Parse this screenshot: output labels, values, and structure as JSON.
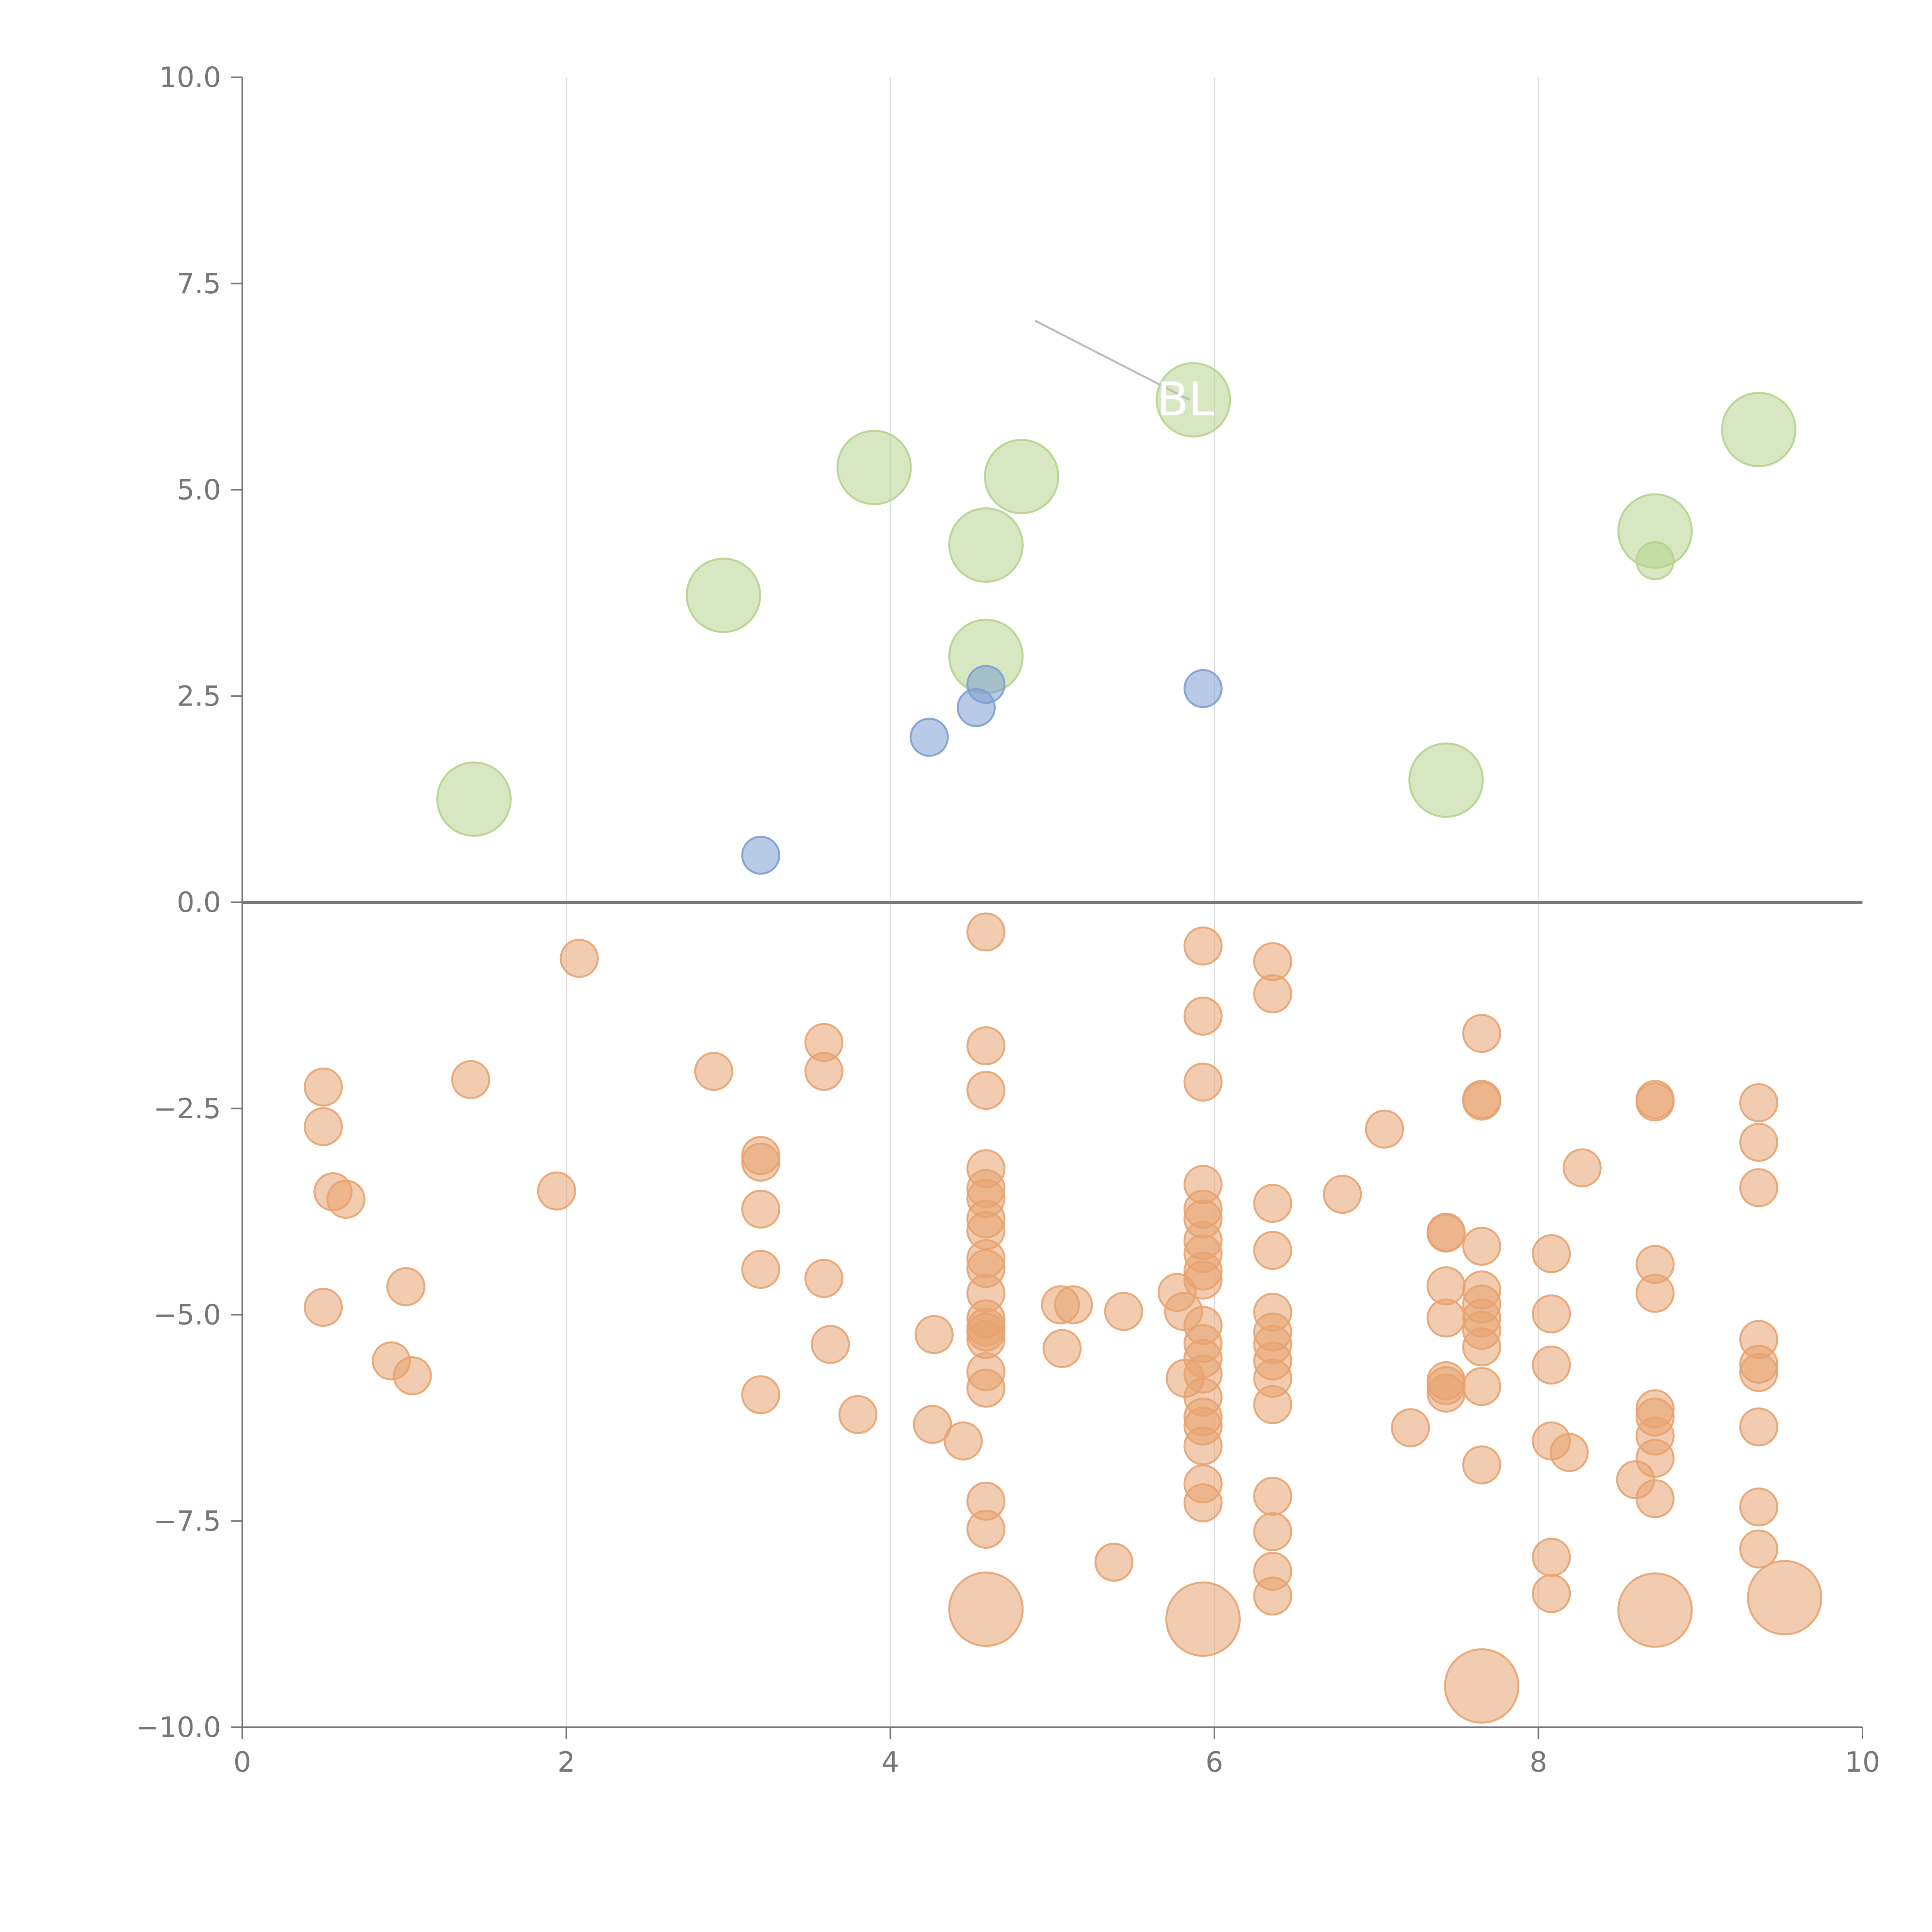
{
  "chart_data": {
    "type": "scatter",
    "title": "",
    "xlabel": "",
    "ylabel": "",
    "xlim": [
      0,
      10
    ],
    "ylim": [
      -10,
      10
    ],
    "x_ticks": [
      "0",
      "2",
      "4",
      "6",
      "8",
      "10"
    ],
    "y_ticks": [
      "−10.0",
      "−7.5",
      "−5.0",
      "−2.5",
      "0.0",
      "2.5",
      "5.0",
      "7.5",
      "10.0"
    ],
    "vertical_grid": [
      2,
      4,
      6,
      8
    ],
    "zero_line": true,
    "colors": {
      "green": "#b5d38e",
      "blue": "#7d9fd0",
      "orange": "#e8a370",
      "axis": "#777777",
      "grid": "#dddddd"
    },
    "series": [
      {
        "color": "green",
        "points": [
          [
            1.43,
            1.25,
            "large"
          ],
          [
            2.97,
            3.72,
            "large"
          ],
          [
            3.9,
            5.27,
            "large"
          ],
          [
            4.59,
            4.33,
            "large"
          ],
          [
            4.59,
            2.98,
            "large"
          ],
          [
            4.81,
            5.16,
            "large"
          ],
          [
            5.87,
            6.09,
            "large"
          ],
          [
            7.43,
            1.48,
            "large"
          ],
          [
            8.72,
            4.5,
            "large"
          ],
          [
            8.72,
            4.14,
            "small"
          ],
          [
            9.36,
            5.73,
            "large"
          ]
        ]
      },
      {
        "color": "blue",
        "points": [
          [
            3.2,
            0.57,
            "small"
          ],
          [
            4.24,
            2.0,
            "small"
          ],
          [
            4.53,
            2.36,
            "small"
          ],
          [
            4.59,
            2.64,
            "small"
          ],
          [
            5.93,
            2.59,
            "small"
          ]
        ]
      },
      {
        "color": "orange",
        "points": [
          [
            0.5,
            -2.24,
            "small"
          ],
          [
            0.5,
            -2.72,
            "small"
          ],
          [
            0.56,
            -3.51,
            "small"
          ],
          [
            0.64,
            -3.6,
            "small"
          ],
          [
            0.5,
            -4.91,
            "small"
          ],
          [
            1.01,
            -4.66,
            "small"
          ],
          [
            0.92,
            -5.56,
            "small"
          ],
          [
            1.05,
            -5.74,
            "small"
          ],
          [
            1.41,
            -2.15,
            "small"
          ],
          [
            1.94,
            -3.5,
            "small"
          ],
          [
            2.08,
            -0.68,
            "small"
          ],
          [
            2.91,
            -2.05,
            "small"
          ],
          [
            3.2,
            -3.07,
            "small"
          ],
          [
            3.2,
            -3.15,
            "small"
          ],
          [
            3.2,
            -3.72,
            "small"
          ],
          [
            3.2,
            -4.45,
            "small"
          ],
          [
            3.2,
            -5.97,
            "small"
          ],
          [
            3.59,
            -1.7,
            "small"
          ],
          [
            3.59,
            -2.05,
            "small"
          ],
          [
            3.59,
            -4.56,
            "small"
          ],
          [
            3.63,
            -5.36,
            "small"
          ],
          [
            3.8,
            -6.21,
            "small"
          ],
          [
            4.27,
            -5.24,
            "small"
          ],
          [
            4.26,
            -6.33,
            "small"
          ],
          [
            4.45,
            -6.53,
            "small"
          ],
          [
            4.59,
            -0.36,
            "small"
          ],
          [
            4.59,
            -1.74,
            "small"
          ],
          [
            4.59,
            -2.28,
            "small"
          ],
          [
            4.59,
            -3.23,
            "small"
          ],
          [
            4.59,
            -3.47,
            "small"
          ],
          [
            4.59,
            -3.59,
            "small"
          ],
          [
            4.59,
            -3.84,
            "small"
          ],
          [
            4.59,
            -3.98,
            "small"
          ],
          [
            4.59,
            -4.32,
            "small"
          ],
          [
            4.59,
            -4.44,
            "small"
          ],
          [
            4.59,
            -4.74,
            "small"
          ],
          [
            4.59,
            -5.05,
            "small"
          ],
          [
            4.59,
            -5.15,
            "small"
          ],
          [
            4.59,
            -5.21,
            "small"
          ],
          [
            4.59,
            -5.3,
            "small"
          ],
          [
            4.59,
            -5.69,
            "small"
          ],
          [
            4.59,
            -5.89,
            "small"
          ],
          [
            4.59,
            -7.26,
            "small"
          ],
          [
            4.59,
            -7.6,
            "small"
          ],
          [
            4.59,
            -8.57,
            "large"
          ],
          [
            5.05,
            -4.88,
            "small"
          ],
          [
            5.13,
            -4.88,
            "small"
          ],
          [
            5.06,
            -5.41,
            "small"
          ],
          [
            5.38,
            -8.0,
            "small"
          ],
          [
            5.44,
            -4.96,
            "small"
          ],
          [
            5.77,
            -4.73,
            "small"
          ],
          [
            5.81,
            -4.96,
            "small"
          ],
          [
            5.82,
            -5.77,
            "small"
          ],
          [
            5.93,
            -0.53,
            "small"
          ],
          [
            5.93,
            -1.38,
            "small"
          ],
          [
            5.93,
            -2.18,
            "small"
          ],
          [
            5.93,
            -3.42,
            "small"
          ],
          [
            5.93,
            -3.72,
            "small"
          ],
          [
            5.93,
            -3.84,
            "small"
          ],
          [
            5.93,
            -4.1,
            "small"
          ],
          [
            5.93,
            -4.26,
            "small"
          ],
          [
            5.93,
            -4.47,
            "small"
          ],
          [
            5.93,
            -4.58,
            "small"
          ],
          [
            5.93,
            -5.13,
            "small"
          ],
          [
            5.93,
            -5.35,
            "small"
          ],
          [
            5.93,
            -5.53,
            "small"
          ],
          [
            5.93,
            -5.72,
            "small"
          ],
          [
            5.93,
            -6.0,
            "small"
          ],
          [
            5.93,
            -6.24,
            "small"
          ],
          [
            5.93,
            -6.35,
            "small"
          ],
          [
            5.93,
            -6.59,
            "small"
          ],
          [
            5.93,
            -7.05,
            "small"
          ],
          [
            5.93,
            -7.28,
            "small"
          ],
          [
            5.93,
            -8.69,
            "large"
          ],
          [
            6.36,
            -0.72,
            "small"
          ],
          [
            6.36,
            -1.11,
            "small"
          ],
          [
            6.36,
            -3.65,
            "small"
          ],
          [
            6.36,
            -4.22,
            "small"
          ],
          [
            6.36,
            -4.97,
            "small"
          ],
          [
            6.36,
            -5.21,
            "small"
          ],
          [
            6.36,
            -5.36,
            "small"
          ],
          [
            6.36,
            -5.56,
            "small"
          ],
          [
            6.36,
            -5.77,
            "small"
          ],
          [
            6.36,
            -6.09,
            "small"
          ],
          [
            6.36,
            -7.2,
            "small"
          ],
          [
            6.36,
            -7.63,
            "small"
          ],
          [
            6.36,
            -8.11,
            "small"
          ],
          [
            6.36,
            -8.41,
            "small"
          ],
          [
            6.79,
            -3.54,
            "small"
          ],
          [
            7.05,
            -2.75,
            "small"
          ],
          [
            7.21,
            -6.37,
            "small"
          ],
          [
            7.43,
            -4.0,
            "small"
          ],
          [
            7.43,
            -4.01,
            "small"
          ],
          [
            7.43,
            -4.65,
            "small"
          ],
          [
            7.43,
            -5.04,
            "small"
          ],
          [
            7.43,
            -5.8,
            "small"
          ],
          [
            7.43,
            -5.86,
            "small"
          ],
          [
            7.43,
            -5.95,
            "small"
          ],
          [
            7.65,
            -1.59,
            "small"
          ],
          [
            7.65,
            -2.39,
            "small"
          ],
          [
            7.65,
            -2.41,
            "small"
          ],
          [
            7.65,
            -4.17,
            "small"
          ],
          [
            7.65,
            -4.7,
            "small"
          ],
          [
            7.65,
            -4.87,
            "small"
          ],
          [
            7.65,
            -5.04,
            "small"
          ],
          [
            7.65,
            -5.19,
            "small"
          ],
          [
            7.65,
            -5.39,
            "small"
          ],
          [
            7.65,
            -5.87,
            "small"
          ],
          [
            7.65,
            -6.82,
            "small"
          ],
          [
            7.65,
            -9.5,
            "large"
          ],
          [
            8.08,
            -4.26,
            "small"
          ],
          [
            8.08,
            -4.99,
            "small"
          ],
          [
            8.08,
            -5.61,
            "small"
          ],
          [
            8.08,
            -6.53,
            "small"
          ],
          [
            8.08,
            -7.94,
            "small"
          ],
          [
            8.08,
            -8.38,
            "small"
          ],
          [
            8.19,
            -6.67,
            "small"
          ],
          [
            8.27,
            -3.22,
            "small"
          ],
          [
            8.6,
            -7.0,
            "small"
          ],
          [
            8.72,
            -2.39,
            "small"
          ],
          [
            8.72,
            -2.42,
            "small"
          ],
          [
            8.72,
            -4.39,
            "small"
          ],
          [
            8.72,
            -4.74,
            "small"
          ],
          [
            8.72,
            -6.14,
            "small"
          ],
          [
            8.72,
            -6.24,
            "small"
          ],
          [
            8.72,
            -6.47,
            "small"
          ],
          [
            8.72,
            -6.74,
            "small"
          ],
          [
            8.72,
            -7.23,
            "small"
          ],
          [
            8.72,
            -8.58,
            "large"
          ],
          [
            9.36,
            -2.43,
            "small"
          ],
          [
            9.36,
            -2.91,
            "small"
          ],
          [
            9.36,
            -3.46,
            "small"
          ],
          [
            9.36,
            -5.3,
            "small"
          ],
          [
            9.36,
            -5.6,
            "small"
          ],
          [
            9.36,
            -5.7,
            "small"
          ],
          [
            9.36,
            -6.36,
            "small"
          ],
          [
            9.36,
            -7.33,
            "small"
          ],
          [
            9.36,
            -7.84,
            "small"
          ],
          [
            9.52,
            -8.43,
            "large"
          ]
        ]
      }
    ],
    "annotations": [
      {
        "text": "BL",
        "x": 5.87,
        "y": 6.09
      }
    ]
  }
}
